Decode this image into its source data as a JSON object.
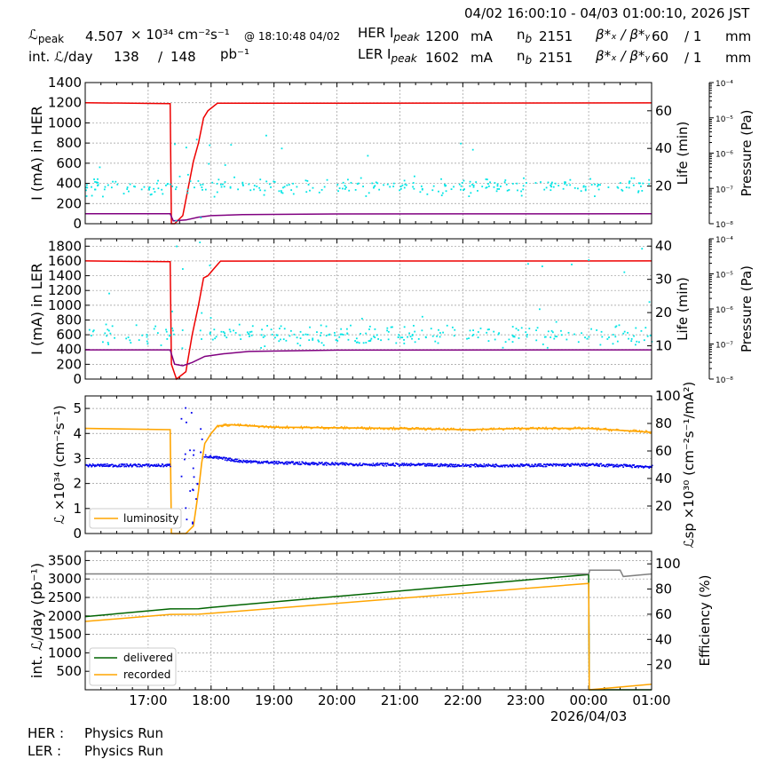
{
  "header": {
    "time_range": "04/02 16:00:10 - 04/03 01:00:10, 2026 JST",
    "lpeak_label": "ℒ",
    "lpeak_sub": "peak",
    "lpeak_value": "4.507",
    "lpeak_unit": "× 10³⁴ cm⁻²s⁻¹",
    "lpeak_time": "@ 18:10:48 04/02",
    "intl_label": "int. ℒ/day",
    "intl_value": "138",
    "intl_slash": "/",
    "intl_total": "148",
    "intl_unit": "pb⁻¹",
    "her_label": "HER I",
    "her_sub": "peak",
    "her_value": "1200",
    "her_unit": "mA",
    "ler_label": "LER I",
    "ler_sub": "peak",
    "ler_value": "1602",
    "ler_unit": "mA",
    "nb_label": "n",
    "nb_sub": "b",
    "her_nb": "2151",
    "ler_nb": "2151",
    "beta_label": "β*ₓ / β*ᵧ",
    "her_beta_x": "60",
    "her_beta_y": "/ 1",
    "ler_beta_x": "60",
    "ler_beta_y": "/ 1",
    "beta_unit": "mm"
  },
  "footer": {
    "her_label": "HER :",
    "her_status": "Physics Run",
    "ler_label": "LER :",
    "ler_status": "Physics Run"
  },
  "colors": {
    "current": "#ee0000",
    "life": "#800080",
    "pressure": "#00e5e5",
    "lumi": "#ffa500",
    "spec_lumi": "#0000ee",
    "delivered": "#006400",
    "recorded": "#ffa500",
    "efficiency": "#808080"
  },
  "chart_data": [
    {
      "type": "line",
      "id": "her",
      "ylabel": "I (mA) in HER",
      "y2label": "Life (min)",
      "y3label": "Pressure (Pa)",
      "ylim": [
        0,
        1400
      ],
      "yticks": [
        0,
        200,
        400,
        600,
        800,
        1000,
        1200,
        1400
      ],
      "y2lim": [
        0,
        75
      ],
      "y2ticks": [
        20,
        40,
        60
      ],
      "y3ticks": [
        "10⁻⁸",
        "10⁻⁷",
        "10⁻⁶",
        "10⁻⁵",
        "10⁻⁴"
      ],
      "series": [
        {
          "role": "current",
          "x": [
            16.0,
            17.35,
            17.37,
            17.42,
            17.55,
            17.65,
            17.72,
            17.8,
            17.88,
            17.95,
            18.1,
            25.0
          ],
          "y": [
            1200,
            1190,
            0,
            0,
            80,
            400,
            620,
            800,
            1050,
            1120,
            1195,
            1198
          ]
        },
        {
          "role": "life",
          "x": [
            16.0,
            17.35,
            17.4,
            17.6,
            17.8,
            18.0,
            18.5,
            20.0,
            25.0
          ],
          "y": [
            5.3,
            5.3,
            1.5,
            2,
            3.5,
            4.3,
            4.8,
            5.2,
            5.3
          ]
        },
        {
          "role": "pressure",
          "center_minutes": 20,
          "spread_minutes": 4
        }
      ]
    },
    {
      "type": "line",
      "id": "ler",
      "ylabel": "I (mA) in LER",
      "y2label": "Life (min)",
      "y3label": "Pressure (Pa)",
      "ylim": [
        0,
        1900
      ],
      "yticks": [
        0,
        200,
        400,
        600,
        800,
        1000,
        1200,
        1400,
        1600,
        1800
      ],
      "y2lim": [
        0,
        42.2
      ],
      "y2ticks": [
        10,
        20,
        30,
        40
      ],
      "y3ticks": [
        "10⁻⁸",
        "10⁻⁷",
        "10⁻⁶",
        "10⁻⁵",
        "10⁻⁴"
      ],
      "series": [
        {
          "role": "current",
          "x": [
            16.0,
            17.35,
            17.37,
            17.45,
            17.6,
            17.7,
            17.8,
            17.88,
            17.95,
            18.05,
            18.15,
            25.0
          ],
          "y": [
            1600,
            1590,
            200,
            0,
            100,
            600,
            1000,
            1370,
            1400,
            1500,
            1598,
            1600
          ]
        },
        {
          "role": "life",
          "x": [
            16.0,
            17.35,
            17.42,
            17.55,
            17.7,
            17.9,
            18.2,
            18.6,
            20.0,
            25.0
          ],
          "y": [
            8.8,
            8.8,
            4.5,
            4.0,
            5.0,
            6.8,
            7.6,
            8.3,
            8.7,
            8.8
          ]
        },
        {
          "role": "pressure",
          "center_minutes": 13.5,
          "spread_minutes": 3
        }
      ]
    },
    {
      "type": "scatter",
      "id": "lumi",
      "ylabel": "ℒ ×10³⁴ (cm⁻²s⁻¹)",
      "y2label": "ℒsp ×10³⁰ (cm⁻²s⁻¹/mA²)",
      "ylim": [
        0,
        5.5
      ],
      "yticks": [
        0,
        1,
        2,
        3,
        4,
        5
      ],
      "y2lim": [
        0,
        100
      ],
      "y2ticks": [
        20,
        40,
        60,
        80,
        100
      ],
      "legend": {
        "position": "bottom-left",
        "label": "luminosity"
      },
      "series": [
        {
          "name": "luminosity",
          "role": "lumi",
          "x": [
            16.0,
            17.35,
            17.37,
            17.6,
            17.72,
            17.8,
            17.85,
            17.9,
            18.0,
            18.1,
            18.3,
            19.0,
            21.0,
            22.0,
            23.0,
            24.0,
            25.0
          ],
          "y": [
            4.2,
            4.15,
            0,
            0,
            0.3,
            1.7,
            2.8,
            3.6,
            4.0,
            4.3,
            4.35,
            4.25,
            4.2,
            4.15,
            4.2,
            4.2,
            4.05
          ]
        },
        {
          "role": "spec_lumi",
          "x": [
            16.0,
            17.35,
            17.9,
            18.0,
            18.5,
            19.0,
            20.0,
            21.0,
            22.0,
            23.0,
            24.0,
            25.0
          ],
          "y": [
            50,
            50,
            57,
            56,
            53,
            52,
            51,
            50.5,
            50,
            50,
            50.5,
            49
          ]
        }
      ]
    },
    {
      "type": "line",
      "id": "intl",
      "ylabel": "int. ℒ/day (pb⁻¹)",
      "y2label": "Efficiency (%)",
      "ylim": [
        0,
        3750
      ],
      "yticks": [
        500,
        1000,
        1500,
        2000,
        2500,
        3000,
        3500
      ],
      "y2lim": [
        0,
        110
      ],
      "y2ticks": [
        20,
        40,
        60,
        80,
        100
      ],
      "xlim": [
        16.0,
        25.0
      ],
      "xticks": [
        "17:00",
        "18:00",
        "19:00",
        "20:00",
        "21:00",
        "22:00",
        "23:00",
        "00:00",
        "01:00"
      ],
      "xticks_at": [
        17,
        18,
        19,
        20,
        21,
        22,
        23,
        24,
        25
      ],
      "xsublabel": "2026/04/03",
      "legend": {
        "position": "bottom-left"
      },
      "series": [
        {
          "name": "delivered",
          "role": "delivered",
          "x": [
            16.0,
            17.35,
            17.8,
            18.0,
            24.0,
            24.01,
            25.0
          ],
          "y": [
            1980,
            2190,
            2195,
            2230,
            3120,
            0,
            0
          ]
        },
        {
          "name": "recorded",
          "role": "recorded",
          "x": [
            16.0,
            17.35,
            17.8,
            18.0,
            24.0,
            24.01,
            25.0
          ],
          "y": [
            1850,
            2040,
            2045,
            2070,
            2880,
            0,
            150
          ]
        },
        {
          "role": "efficiency",
          "x": [
            16.0,
            24.0,
            24.02,
            24.5,
            24.55,
            25.0
          ],
          "y": [
            92,
            92,
            95,
            95,
            90,
            92
          ]
        }
      ]
    }
  ]
}
